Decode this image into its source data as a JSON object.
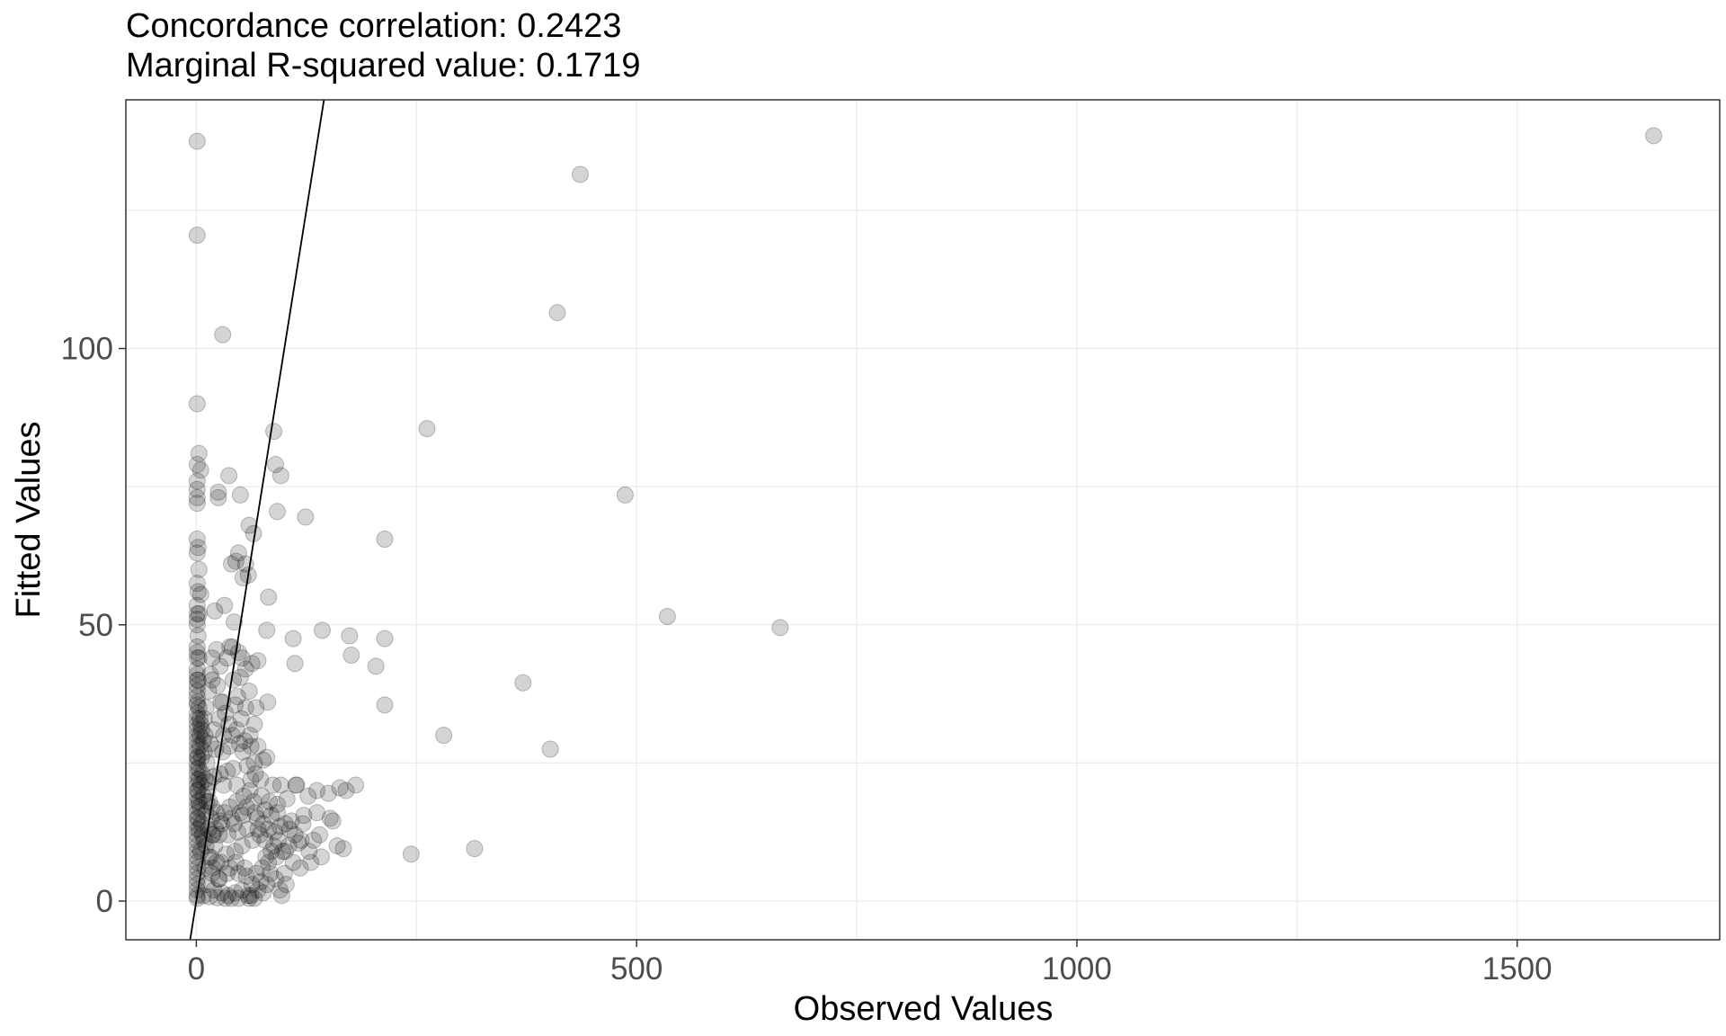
{
  "chart_data": {
    "type": "scatter",
    "title_lines": [
      "Concordance correlation: 0.2423",
      "Marginal R-squared value: 0.1719"
    ],
    "xlabel": "Observed Values",
    "ylabel": "Fitted Values",
    "xlim": [
      -80,
      1730
    ],
    "ylim": [
      -7,
      145
    ],
    "x_ticks": [
      0,
      500,
      1000,
      1500
    ],
    "x_tick_labels": [
      "0",
      "500",
      "1000",
      "1500"
    ],
    "y_ticks": [
      0,
      50,
      100
    ],
    "y_tick_labels": [
      "0",
      "50",
      "100"
    ],
    "grid": true,
    "identity_line": {
      "slope": 1,
      "intercept": 0
    },
    "point_color": "#000000",
    "point_alpha": 0.17,
    "points": [
      [
        1655,
        138.5
      ],
      [
        436,
        131.5
      ],
      [
        410,
        106.5
      ],
      [
        262,
        85.5
      ],
      [
        487,
        73.5
      ],
      [
        535,
        51.5
      ],
      [
        663,
        49.5
      ],
      [
        371,
        39.5
      ],
      [
        402,
        27.5
      ],
      [
        281,
        30
      ],
      [
        316,
        9.5
      ],
      [
        244,
        8.5
      ],
      [
        1,
        137.5
      ],
      [
        1,
        120.5
      ],
      [
        30,
        102.5
      ],
      [
        1,
        90
      ],
      [
        88,
        85
      ],
      [
        3,
        81
      ],
      [
        90,
        79
      ],
      [
        1,
        79
      ],
      [
        5,
        78
      ],
      [
        96,
        77
      ],
      [
        37,
        77
      ],
      [
        1,
        76
      ],
      [
        1,
        74.5
      ],
      [
        25,
        74
      ],
      [
        50,
        73.5
      ],
      [
        1,
        73
      ],
      [
        25,
        73
      ],
      [
        1,
        72
      ],
      [
        92,
        70.5
      ],
      [
        124,
        69.5
      ],
      [
        60,
        68
      ],
      [
        65,
        66.5
      ],
      [
        1,
        65.5
      ],
      [
        214,
        65.5
      ],
      [
        1,
        63
      ],
      [
        48,
        63
      ],
      [
        45,
        61.5
      ],
      [
        40,
        61
      ],
      [
        56,
        61
      ],
      [
        53,
        58.5
      ],
      [
        59,
        59
      ],
      [
        1,
        57.5
      ],
      [
        5,
        55.5
      ],
      [
        82,
        55
      ],
      [
        1,
        53.5
      ],
      [
        32,
        53.5
      ],
      [
        21,
        52.5
      ],
      [
        1,
        52
      ],
      [
        1,
        51
      ],
      [
        1,
        50
      ],
      [
        43,
        50.5
      ],
      [
        80,
        49
      ],
      [
        143,
        49
      ],
      [
        174,
        48
      ],
      [
        110,
        47.5
      ],
      [
        214,
        47.5
      ],
      [
        1,
        46
      ],
      [
        1,
        45
      ],
      [
        23,
        45.5
      ],
      [
        41,
        46
      ],
      [
        48,
        45
      ],
      [
        1,
        44
      ],
      [
        52,
        44
      ],
      [
        70,
        43.5
      ],
      [
        176,
        44.5
      ],
      [
        204,
        42.5
      ],
      [
        112,
        43
      ],
      [
        63,
        43
      ],
      [
        27,
        42.5
      ],
      [
        1,
        42
      ],
      [
        1,
        41
      ],
      [
        16,
        41
      ],
      [
        1,
        40
      ],
      [
        18,
        40
      ],
      [
        1,
        39
      ],
      [
        50,
        40.5
      ],
      [
        1,
        38
      ],
      [
        1,
        37
      ],
      [
        30,
        36
      ],
      [
        1,
        36
      ],
      [
        1,
        35.5
      ],
      [
        81,
        36
      ],
      [
        44,
        35.5
      ],
      [
        68,
        35
      ],
      [
        214,
        35.5
      ],
      [
        1,
        34
      ],
      [
        1,
        33
      ],
      [
        1,
        32
      ],
      [
        1,
        31
      ],
      [
        1,
        30
      ],
      [
        1,
        29
      ],
      [
        1,
        28
      ],
      [
        1,
        27
      ],
      [
        1,
        26
      ],
      [
        1,
        25
      ],
      [
        1,
        24
      ],
      [
        1,
        23
      ],
      [
        1,
        22
      ],
      [
        1,
        21
      ],
      [
        1,
        20
      ],
      [
        1,
        19
      ],
      [
        1,
        18
      ],
      [
        1,
        17
      ],
      [
        1,
        16
      ],
      [
        1,
        15
      ],
      [
        1,
        14
      ],
      [
        1,
        13
      ],
      [
        1,
        12
      ],
      [
        1,
        11
      ],
      [
        1,
        10
      ],
      [
        1,
        9
      ],
      [
        1,
        8
      ],
      [
        1,
        7
      ],
      [
        1,
        6
      ],
      [
        1,
        5
      ],
      [
        1,
        4
      ],
      [
        1,
        3
      ],
      [
        1,
        2
      ],
      [
        1,
        1
      ],
      [
        1,
        0.5
      ],
      [
        4,
        33
      ],
      [
        6,
        31
      ],
      [
        8,
        29
      ],
      [
        4,
        28
      ],
      [
        9,
        27
      ],
      [
        6,
        26
      ],
      [
        12,
        25
      ],
      [
        3,
        24
      ],
      [
        7,
        23
      ],
      [
        10,
        22
      ],
      [
        5,
        21
      ],
      [
        13,
        20
      ],
      [
        8,
        19
      ],
      [
        15,
        18
      ],
      [
        4,
        17
      ],
      [
        11,
        16
      ],
      [
        17,
        15
      ],
      [
        6,
        14
      ],
      [
        14,
        13
      ],
      [
        19,
        12
      ],
      [
        9,
        11
      ],
      [
        21,
        10
      ],
      [
        5,
        9
      ],
      [
        16,
        8
      ],
      [
        23,
        7
      ],
      [
        10,
        6
      ],
      [
        18,
        5
      ],
      [
        26,
        4
      ],
      [
        12,
        3
      ],
      [
        20,
        2
      ],
      [
        29,
        1.5
      ],
      [
        8,
        1
      ],
      [
        15,
        0.8
      ],
      [
        24,
        0.6
      ],
      [
        33,
        0.5
      ],
      [
        40,
        0.5
      ],
      [
        48,
        0.5
      ],
      [
        60,
        0.5
      ],
      [
        5,
        32
      ],
      [
        10,
        30
      ],
      [
        16,
        28.5
      ],
      [
        22,
        27.5
      ],
      [
        30,
        27
      ],
      [
        37,
        28
      ],
      [
        49,
        28.5
      ],
      [
        55,
        29
      ],
      [
        62,
        28
      ],
      [
        70,
        28
      ],
      [
        80,
        26
      ],
      [
        76,
        25.5
      ],
      [
        66,
        25
      ],
      [
        58,
        24.5
      ],
      [
        42,
        24
      ],
      [
        35,
        23.5
      ],
      [
        27,
        23
      ],
      [
        20,
        22.5
      ],
      [
        14,
        21.5
      ],
      [
        31,
        21
      ],
      [
        46,
        21
      ],
      [
        62,
        22
      ],
      [
        73,
        22
      ],
      [
        87,
        21
      ],
      [
        96,
        21
      ],
      [
        113,
        21
      ],
      [
        114,
        21
      ],
      [
        137,
        20
      ],
      [
        163,
        20.5
      ],
      [
        150,
        19.5
      ],
      [
        127,
        19
      ],
      [
        103,
        18.5
      ],
      [
        92,
        17.5
      ],
      [
        78,
        16.5
      ],
      [
        67,
        16
      ],
      [
        53,
        15.5
      ],
      [
        40,
        15
      ],
      [
        29,
        14
      ],
      [
        22,
        13
      ],
      [
        18,
        12
      ],
      [
        26,
        12
      ],
      [
        36,
        12
      ],
      [
        47,
        12.5
      ],
      [
        58,
        13
      ],
      [
        70,
        13
      ],
      [
        82,
        13
      ],
      [
        95,
        13.5
      ],
      [
        108,
        14.5
      ],
      [
        122,
        15.5
      ],
      [
        137,
        16
      ],
      [
        152,
        15
      ],
      [
        155,
        14.5
      ],
      [
        121,
        14
      ],
      [
        106,
        13
      ],
      [
        89,
        12.5
      ],
      [
        78,
        11
      ],
      [
        64,
        11
      ],
      [
        52,
        10
      ],
      [
        44,
        9
      ],
      [
        34,
        8.5
      ],
      [
        28,
        7
      ],
      [
        38,
        6
      ],
      [
        48,
        5
      ],
      [
        57,
        4.5
      ],
      [
        68,
        5
      ],
      [
        75,
        6
      ],
      [
        82,
        7
      ],
      [
        91,
        8
      ],
      [
        101,
        9
      ],
      [
        116,
        10.5
      ],
      [
        130,
        7
      ],
      [
        84,
        5
      ],
      [
        73,
        3.5
      ],
      [
        63,
        3
      ],
      [
        52,
        2
      ],
      [
        44,
        1.5
      ],
      [
        36,
        1
      ],
      [
        59,
        1
      ],
      [
        66,
        0.5
      ],
      [
        76,
        1.5
      ],
      [
        95,
        2
      ],
      [
        102,
        3
      ],
      [
        97,
        1
      ],
      [
        62,
        1
      ],
      [
        12,
        18
      ],
      [
        18,
        17
      ],
      [
        23,
        16
      ],
      [
        27,
        14.5
      ],
      [
        32,
        16
      ],
      [
        38,
        17
      ],
      [
        43,
        14
      ],
      [
        46,
        18
      ],
      [
        50,
        16
      ],
      [
        54,
        19
      ],
      [
        57,
        17
      ],
      [
        61,
        20
      ],
      [
        65,
        18
      ],
      [
        69,
        15
      ],
      [
        72,
        12
      ],
      [
        76,
        14
      ],
      [
        85,
        15.5
      ],
      [
        88,
        10
      ],
      [
        93,
        11
      ],
      [
        98,
        9
      ],
      [
        105,
        10
      ],
      [
        112,
        12
      ],
      [
        119,
        11
      ],
      [
        128,
        9
      ],
      [
        140,
        12
      ],
      [
        167,
        9.5
      ],
      [
        181,
        21
      ],
      [
        170,
        20
      ],
      [
        160,
        10
      ],
      [
        142,
        8
      ],
      [
        133,
        11
      ],
      [
        118,
        6
      ],
      [
        110,
        7
      ],
      [
        100,
        5
      ],
      [
        90,
        4
      ],
      [
        80,
        3
      ],
      [
        70,
        2
      ],
      [
        55,
        6
      ],
      [
        45,
        7
      ],
      [
        35,
        5
      ],
      [
        25,
        4
      ],
      [
        19,
        6
      ],
      [
        14,
        8
      ],
      [
        11,
        10
      ],
      [
        7,
        12
      ],
      [
        3,
        13
      ],
      [
        2,
        15
      ],
      [
        3,
        18
      ],
      [
        2,
        20
      ],
      [
        3,
        22
      ],
      [
        2,
        26
      ],
      [
        4,
        30
      ],
      [
        3,
        35
      ],
      [
        2,
        40
      ],
      [
        3,
        44
      ],
      [
        2,
        48
      ],
      [
        3,
        52
      ],
      [
        2,
        56
      ],
      [
        3,
        60
      ],
      [
        2,
        64
      ],
      [
        24,
        39
      ],
      [
        28,
        36
      ],
      [
        33,
        34
      ],
      [
        37,
        32
      ],
      [
        41,
        30
      ],
      [
        46,
        31
      ],
      [
        51,
        33
      ],
      [
        56,
        35
      ],
      [
        61,
        30
      ],
      [
        66,
        32
      ],
      [
        35,
        44
      ],
      [
        38,
        46
      ],
      [
        42,
        40
      ],
      [
        18,
        44
      ],
      [
        14,
        38
      ],
      [
        11,
        35
      ],
      [
        9,
        33
      ],
      [
        20,
        31
      ],
      [
        26,
        33
      ],
      [
        31,
        30
      ],
      [
        56,
        42
      ],
      [
        60,
        38
      ],
      [
        47,
        37
      ],
      [
        53,
        27
      ],
      [
        67,
        23
      ],
      [
        74,
        19
      ],
      [
        83,
        18
      ],
      [
        92,
        16
      ],
      [
        101,
        14
      ],
      [
        85,
        9
      ],
      [
        79,
        8
      ]
    ]
  }
}
